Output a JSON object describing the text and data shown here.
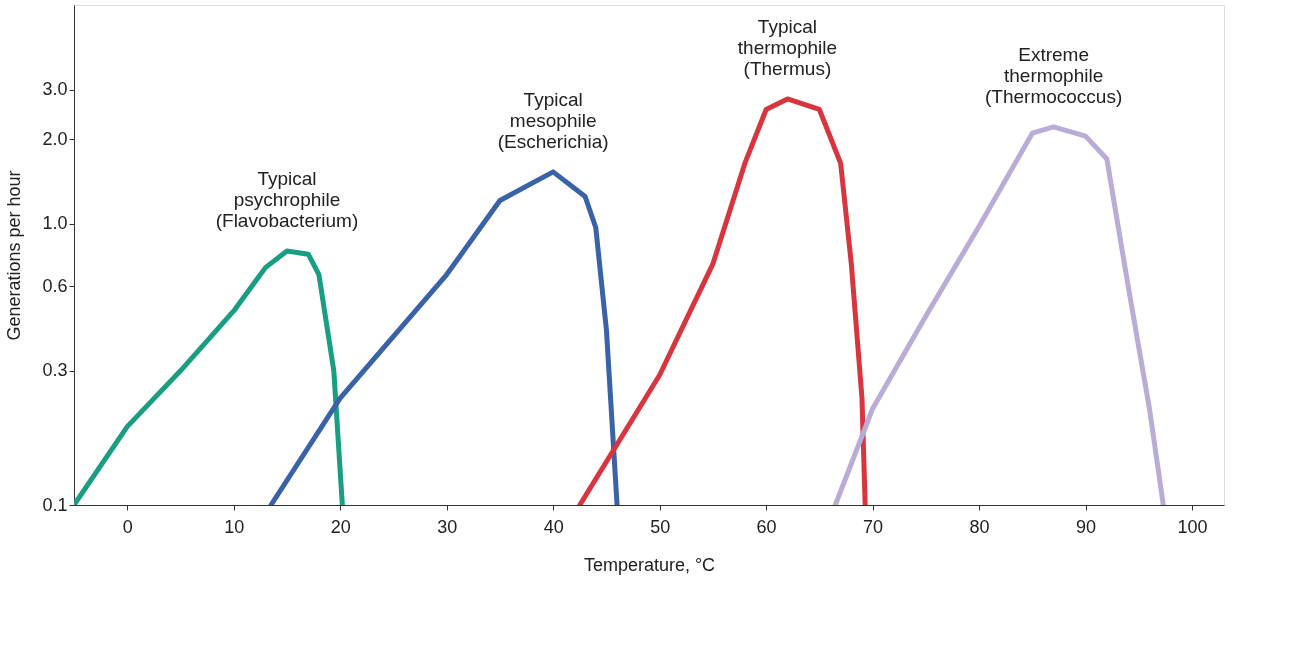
{
  "chart_data": {
    "type": "line",
    "xlabel": "Temperature, °C",
    "ylabel": "Generations per hour",
    "log": "y",
    "grid": false,
    "legend": false,
    "marker": "none",
    "line_style": "solid",
    "xlim": [
      -5,
      103
    ],
    "xticks": [
      0,
      10,
      20,
      30,
      40,
      50,
      60,
      70,
      80,
      90,
      100
    ],
    "ylim": [
      0.1,
      6
    ],
    "yticks": [
      0.1,
      0.3,
      0.6,
      {
        "value": 1,
        "label": "1.0"
      },
      {
        "value": 2,
        "label": "2.0"
      },
      {
        "value": 3,
        "label": "3.0"
      }
    ],
    "series": [
      {
        "name": "Typical\npsychrophile\n(Flavobacterium)",
        "color": "#1a9e82",
        "x": [
          -5,
          0,
          5,
          10,
          13,
          15,
          17,
          18,
          19.4,
          20.2
        ],
        "values": [
          0.1,
          0.19,
          0.3,
          0.49,
          0.7,
          0.8,
          0.78,
          0.66,
          0.3,
          0.1
        ]
      },
      {
        "name": "Typical\nmesophile\n(Escherichia)",
        "color": "#3a62a8",
        "x": [
          13.5,
          20,
          30,
          35,
          40,
          43,
          44,
          45,
          46
        ],
        "values": [
          0.1,
          0.24,
          0.66,
          1.21,
          1.53,
          1.25,
          0.97,
          0.42,
          0.1
        ]
      },
      {
        "name": "Typical\nthermophile\n(Thermus)",
        "color": "#d9353f",
        "x": [
          42.5,
          50,
          55,
          58,
          60,
          62,
          65,
          67,
          68,
          69,
          69.3
        ],
        "values": [
          0.1,
          0.29,
          0.72,
          1.64,
          2.55,
          2.78,
          2.55,
          1.64,
          0.72,
          0.24,
          0.1
        ]
      },
      {
        "name": "Extreme\nthermophile\n(Thermococcus)",
        "color": "#b9acd6",
        "x": [
          66.5,
          70,
          75,
          80,
          85,
          87,
          90,
          92,
          94,
          96,
          97.3
        ],
        "values": [
          0.1,
          0.22,
          0.47,
          0.98,
          2.1,
          2.21,
          2.05,
          1.7,
          0.6,
          0.22,
          0.1
        ]
      }
    ]
  }
}
